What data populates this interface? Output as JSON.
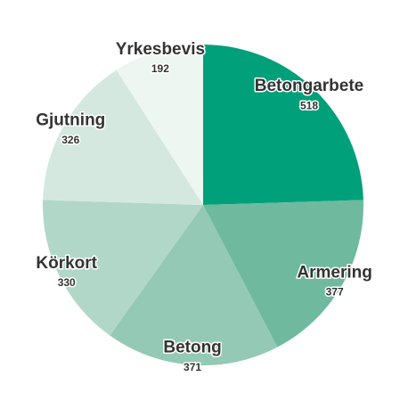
{
  "chart_data": {
    "type": "pie",
    "categories": [
      "Betongarbete",
      "Armering",
      "Betong",
      "Körkort",
      "Gjutning",
      "Yrkesbevis"
    ],
    "values": [
      518,
      377,
      371,
      330,
      326,
      192
    ],
    "colors": [
      "#00a07b",
      "#6fba9f",
      "#94c9b5",
      "#b1d7c8",
      "#d4e8e0",
      "#eef6f2"
    ]
  }
}
